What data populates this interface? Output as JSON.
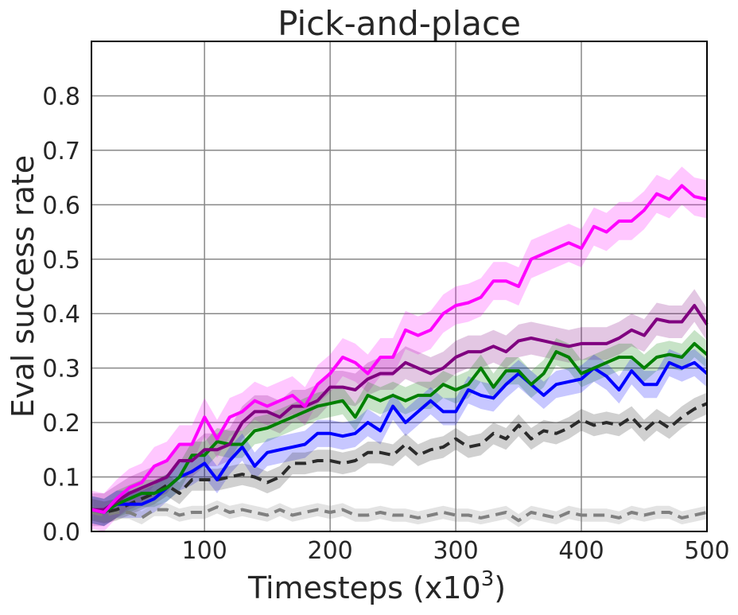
{
  "chart_data": {
    "type": "line",
    "title": "Pick-and-place",
    "xlabel": "Timesteps (x10",
    "xlabel_sup": "3",
    "xlabel_close": ")",
    "ylabel": "Eval success rate",
    "xlim": [
      10,
      500
    ],
    "ylim": [
      0,
      0.9
    ],
    "xticks": [
      100,
      200,
      300,
      400,
      500
    ],
    "yticks": [
      0.0,
      0.1,
      0.2,
      0.3,
      0.4,
      0.5,
      0.6,
      0.7,
      0.8
    ],
    "grid": true,
    "legend": "none",
    "x": [
      10,
      20,
      30,
      40,
      50,
      60,
      70,
      80,
      90,
      100,
      110,
      120,
      130,
      140,
      150,
      160,
      170,
      180,
      190,
      200,
      210,
      220,
      230,
      240,
      250,
      260,
      270,
      280,
      290,
      300,
      310,
      320,
      330,
      340,
      350,
      360,
      370,
      380,
      390,
      400,
      410,
      420,
      430,
      440,
      450,
      460,
      470,
      480,
      490,
      500
    ],
    "series": [
      {
        "color": "#ff00ff",
        "dash": "solid",
        "band_width": 0.035,
        "values": [
          0.04,
          0.035,
          0.06,
          0.08,
          0.09,
          0.12,
          0.13,
          0.16,
          0.16,
          0.21,
          0.17,
          0.21,
          0.22,
          0.24,
          0.23,
          0.24,
          0.25,
          0.23,
          0.27,
          0.29,
          0.32,
          0.31,
          0.29,
          0.32,
          0.32,
          0.37,
          0.36,
          0.37,
          0.4,
          0.415,
          0.42,
          0.43,
          0.46,
          0.46,
          0.45,
          0.5,
          0.51,
          0.52,
          0.53,
          0.52,
          0.56,
          0.55,
          0.57,
          0.57,
          0.59,
          0.62,
          0.61,
          0.635,
          0.615,
          0.61
        ]
      },
      {
        "color": "#800080",
        "dash": "solid",
        "band_width": 0.03,
        "values": [
          0.04,
          0.04,
          0.055,
          0.07,
          0.08,
          0.09,
          0.1,
          0.13,
          0.13,
          0.15,
          0.15,
          0.16,
          0.2,
          0.22,
          0.22,
          0.21,
          0.23,
          0.23,
          0.24,
          0.265,
          0.265,
          0.26,
          0.28,
          0.29,
          0.29,
          0.31,
          0.3,
          0.29,
          0.3,
          0.32,
          0.33,
          0.33,
          0.34,
          0.33,
          0.35,
          0.355,
          0.35,
          0.345,
          0.34,
          0.345,
          0.345,
          0.345,
          0.355,
          0.37,
          0.36,
          0.39,
          0.385,
          0.385,
          0.415,
          0.38
        ]
      },
      {
        "color": "#008000",
        "dash": "solid",
        "band_width": 0.025,
        "values": [
          0.04,
          0.035,
          0.05,
          0.06,
          0.07,
          0.07,
          0.08,
          0.1,
          0.14,
          0.14,
          0.165,
          0.16,
          0.16,
          0.185,
          0.19,
          0.2,
          0.21,
          0.22,
          0.23,
          0.235,
          0.24,
          0.21,
          0.25,
          0.24,
          0.25,
          0.24,
          0.25,
          0.25,
          0.27,
          0.26,
          0.27,
          0.3,
          0.265,
          0.295,
          0.295,
          0.27,
          0.29,
          0.33,
          0.32,
          0.29,
          0.3,
          0.31,
          0.32,
          0.32,
          0.3,
          0.32,
          0.325,
          0.32,
          0.345,
          0.325
        ]
      },
      {
        "color": "#0000ff",
        "dash": "solid",
        "band_width": 0.025,
        "values": [
          0.04,
          0.035,
          0.05,
          0.05,
          0.05,
          0.06,
          0.08,
          0.1,
          0.11,
          0.125,
          0.095,
          0.13,
          0.155,
          0.12,
          0.145,
          0.15,
          0.155,
          0.16,
          0.18,
          0.18,
          0.175,
          0.18,
          0.2,
          0.185,
          0.23,
          0.2,
          0.22,
          0.24,
          0.22,
          0.22,
          0.26,
          0.25,
          0.245,
          0.27,
          0.29,
          0.27,
          0.25,
          0.27,
          0.275,
          0.28,
          0.3,
          0.285,
          0.26,
          0.295,
          0.27,
          0.27,
          0.31,
          0.3,
          0.31,
          0.29
        ]
      },
      {
        "color": "#2b2b2b",
        "dash": "dashed",
        "band_width": 0.02,
        "values": [
          0.04,
          0.035,
          0.04,
          0.05,
          0.06,
          0.07,
          0.085,
          0.07,
          0.095,
          0.095,
          0.095,
          0.1,
          0.105,
          0.1,
          0.09,
          0.1,
          0.125,
          0.125,
          0.13,
          0.13,
          0.125,
          0.13,
          0.145,
          0.145,
          0.14,
          0.16,
          0.14,
          0.15,
          0.155,
          0.17,
          0.155,
          0.16,
          0.18,
          0.17,
          0.195,
          0.17,
          0.185,
          0.18,
          0.19,
          0.205,
          0.195,
          0.2,
          0.195,
          0.21,
          0.185,
          0.205,
          0.19,
          0.21,
          0.225,
          0.235
        ]
      },
      {
        "color": "#808080",
        "dash": "dashed",
        "band_width": 0.012,
        "values": [
          0.035,
          0.03,
          0.035,
          0.035,
          0.025,
          0.04,
          0.04,
          0.03,
          0.035,
          0.035,
          0.045,
          0.035,
          0.04,
          0.035,
          0.03,
          0.04,
          0.03,
          0.035,
          0.04,
          0.035,
          0.04,
          0.03,
          0.03,
          0.035,
          0.03,
          0.03,
          0.025,
          0.03,
          0.035,
          0.03,
          0.03,
          0.025,
          0.03,
          0.035,
          0.02,
          0.035,
          0.03,
          0.025,
          0.035,
          0.03,
          0.03,
          0.03,
          0.025,
          0.035,
          0.03,
          0.035,
          0.035,
          0.025,
          0.03,
          0.035
        ]
      }
    ]
  }
}
